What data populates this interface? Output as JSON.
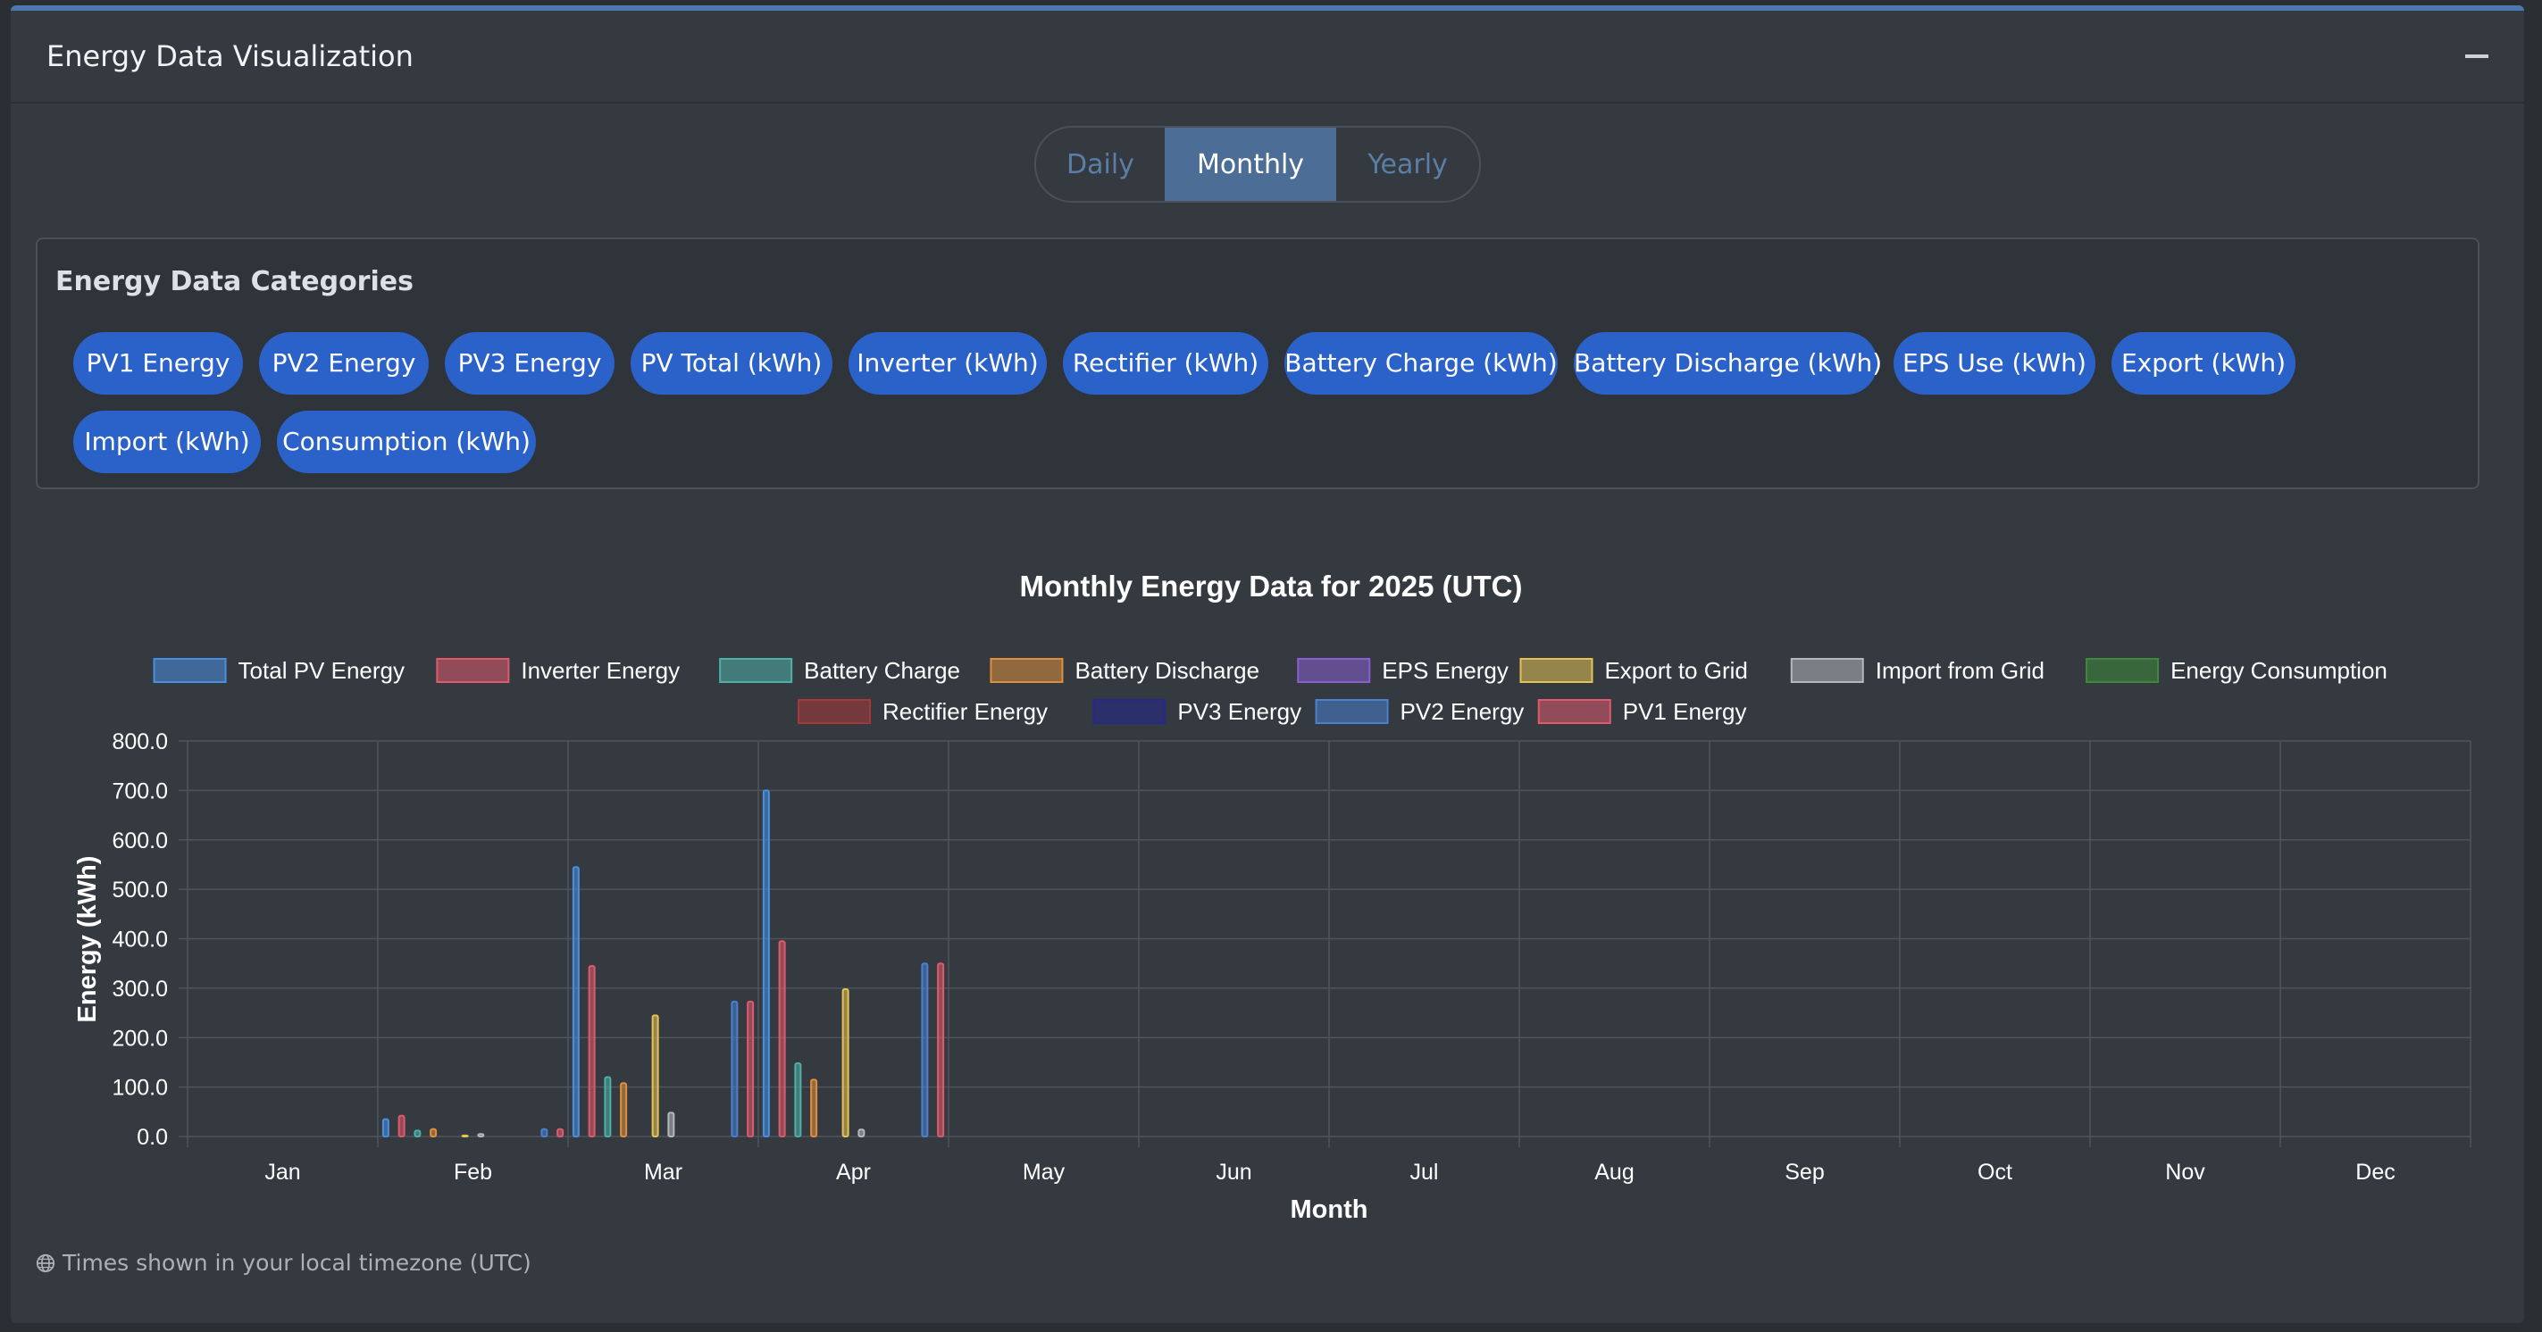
{
  "header": {
    "title": "Energy Data Visualization"
  },
  "tabs": [
    {
      "label": "Daily",
      "active": false
    },
    {
      "label": "Monthly",
      "active": true
    },
    {
      "label": "Yearly",
      "active": false
    }
  ],
  "categories": {
    "title": "Energy Data Categories",
    "items": [
      "PV1 Energy",
      "PV2 Energy",
      "PV3 Energy",
      "PV Total (kWh)",
      "Inverter (kWh)",
      "Rectifier (kWh)",
      "Battery Charge (kWh)",
      "Battery Discharge (kWh)",
      "EPS Use (kWh)",
      "Export (kWh)",
      "Import (kWh)",
      "Consumption (kWh)"
    ]
  },
  "footer": {
    "note": "Times shown in your local timezone (UTC)"
  },
  "colors": {
    "accent": "#2a62c9",
    "card_bg": "#343a40",
    "grid": "#4a5058"
  },
  "chart_data": {
    "type": "bar",
    "title": "Monthly Energy Data for 2025 (UTC)",
    "xlabel": "Month",
    "ylabel": "Energy (kWh)",
    "ylim": [
      0,
      800
    ],
    "yticks": [
      "0.0",
      "100.0",
      "200.0",
      "300.0",
      "400.0",
      "500.0",
      "600.0",
      "700.0",
      "800.0"
    ],
    "grid": true,
    "legend_position": "top",
    "categories": [
      "Jan",
      "Feb",
      "Mar",
      "Apr",
      "May",
      "Jun",
      "Jul",
      "Aug",
      "Sep",
      "Oct",
      "Nov",
      "Dec"
    ],
    "series": [
      {
        "name": "Total PV Energy",
        "color": "#4a90e2",
        "values": [
          0,
          35,
          545,
          700,
          0,
          0,
          0,
          0,
          0,
          0,
          0,
          0
        ]
      },
      {
        "name": "Inverter Energy",
        "color": "#e05a6b",
        "values": [
          0,
          42,
          345,
          395,
          0,
          0,
          0,
          0,
          0,
          0,
          0,
          0
        ]
      },
      {
        "name": "Battery Charge",
        "color": "#4fb0a8",
        "values": [
          0,
          12,
          120,
          148,
          0,
          0,
          0,
          0,
          0,
          0,
          0,
          0
        ]
      },
      {
        "name": "Battery Discharge",
        "color": "#e0903c",
        "values": [
          0,
          15,
          108,
          115,
          0,
          0,
          0,
          0,
          0,
          0,
          0,
          0
        ]
      },
      {
        "name": "EPS Energy",
        "color": "#8a5fd0",
        "values": [
          0,
          0,
          0,
          0,
          0,
          0,
          0,
          0,
          0,
          0,
          0,
          0
        ]
      },
      {
        "name": "Export to Grid",
        "color": "#e6c255",
        "values": [
          0,
          2,
          245,
          298,
          0,
          0,
          0,
          0,
          0,
          0,
          0,
          0
        ]
      },
      {
        "name": "Import from Grid",
        "color": "#b5b8bc",
        "values": [
          0,
          5,
          48,
          14,
          0,
          0,
          0,
          0,
          0,
          0,
          0,
          0
        ]
      },
      {
        "name": "Energy Consumption",
        "color": "#3f8a3a",
        "values": [
          0,
          0,
          0,
          0,
          0,
          0,
          0,
          0,
          0,
          0,
          0,
          0
        ]
      },
      {
        "name": "Rectifier Energy",
        "color": "#a83838",
        "values": [
          0,
          0,
          0,
          0,
          0,
          0,
          0,
          0,
          0,
          0,
          0,
          0
        ]
      },
      {
        "name": "PV3 Energy",
        "color": "#27288c",
        "values": [
          0,
          0,
          0,
          0,
          0,
          0,
          0,
          0,
          0,
          0,
          0,
          0
        ]
      },
      {
        "name": "PV2 Energy",
        "color": "#4a80d0",
        "values": [
          0,
          15,
          273,
          350,
          0,
          0,
          0,
          0,
          0,
          0,
          0,
          0
        ]
      },
      {
        "name": "PV1 Energy",
        "color": "#e05a6b",
        "values": [
          0,
          15,
          273,
          350,
          0,
          0,
          0,
          0,
          0,
          0,
          0,
          0
        ]
      }
    ]
  }
}
